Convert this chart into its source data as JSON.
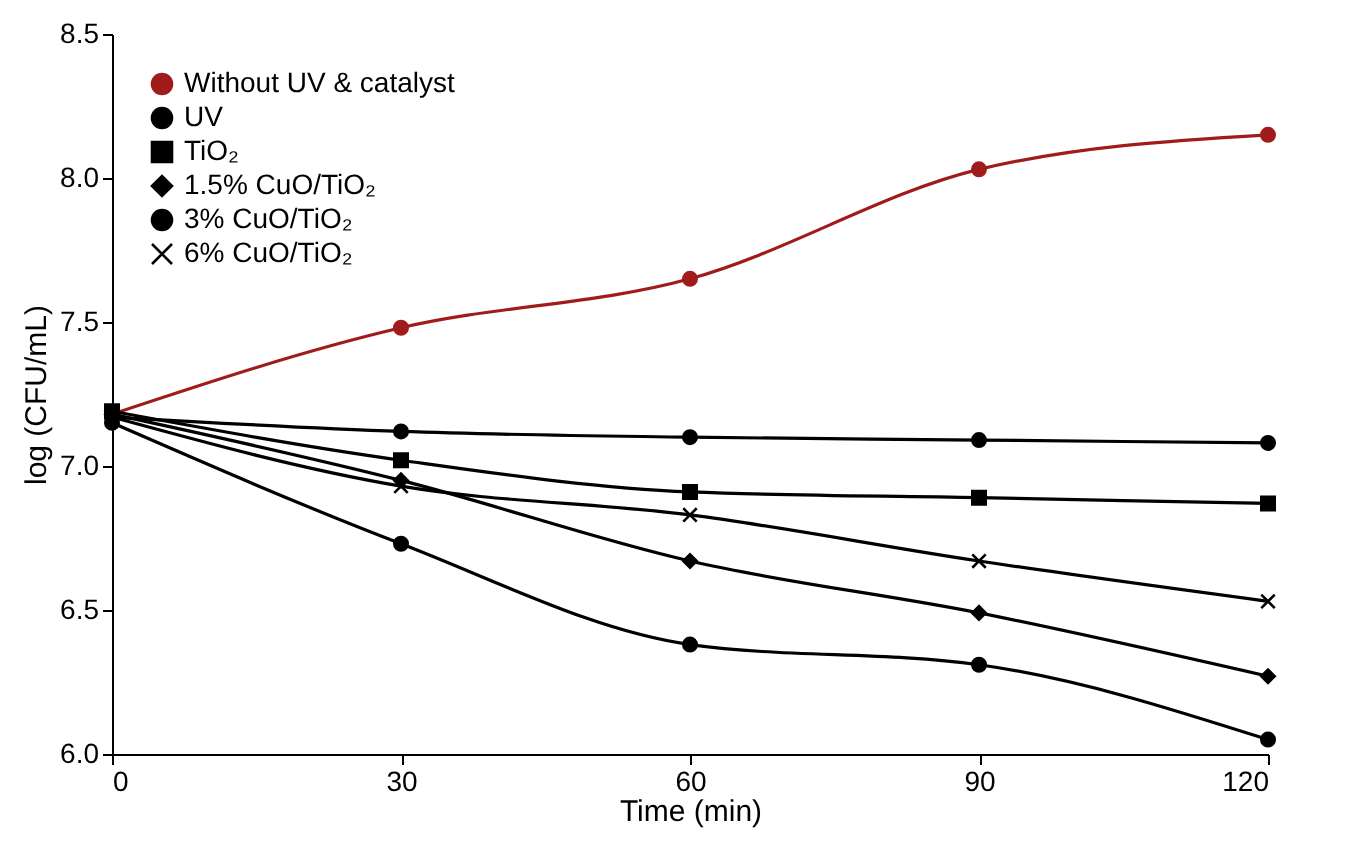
{
  "chart_data": {
    "type": "line",
    "xlabel": "Time (min)",
    "ylabel": "log (CFU/mL)",
    "x": [
      0,
      30,
      60,
      90,
      120
    ],
    "series": [
      {
        "name": "Without UV & catalyst",
        "color": "#a01c1c",
        "marker": "circle",
        "values": [
          7.18,
          7.48,
          7.65,
          8.03,
          8.15
        ]
      },
      {
        "name": "UV",
        "color": "#000000",
        "marker": "circle",
        "values": [
          7.17,
          7.12,
          7.1,
          7.09,
          7.08
        ]
      },
      {
        "name": "TiO₂",
        "color": "#000000",
        "marker": "square",
        "values": [
          7.19,
          7.02,
          6.91,
          6.89,
          6.87
        ]
      },
      {
        "name": "1.5% CuO/TiO₂",
        "color": "#000000",
        "marker": "diamond",
        "values": [
          7.18,
          6.95,
          6.67,
          6.49,
          6.27
        ]
      },
      {
        "name": "3% CuO/TiO₂",
        "color": "#000000",
        "marker": "circle",
        "values": [
          7.15,
          6.73,
          6.38,
          6.31,
          6.05
        ]
      },
      {
        "name": "6% CuO/TiO₂",
        "color": "#000000",
        "marker": "cross",
        "values": [
          7.17,
          6.93,
          6.83,
          6.67,
          6.53
        ]
      }
    ],
    "xlim": [
      0,
      120
    ],
    "xticks": [
      0,
      30,
      60,
      90,
      120
    ],
    "ylim": [
      6,
      8.5
    ],
    "yticks": [
      {
        "value": 6,
        "label": "6.0"
      },
      6.5,
      {
        "value": 7,
        "label": "7.0"
      },
      7.5,
      {
        "value": 8,
        "label": "8.0"
      },
      8.5
    ],
    "grid": false,
    "legend": "top left",
    "line_style": "solid"
  }
}
